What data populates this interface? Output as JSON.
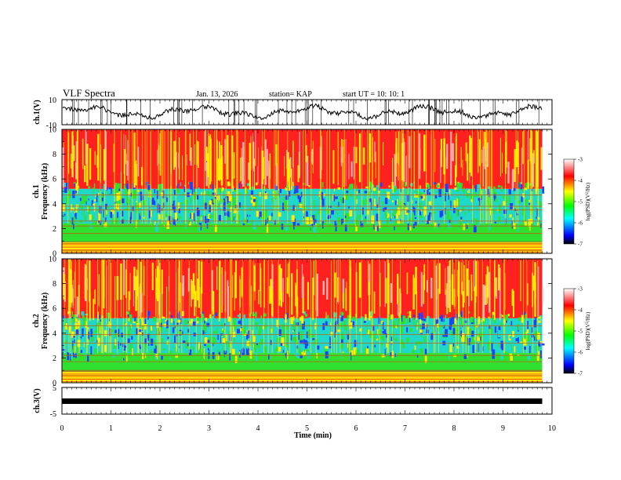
{
  "chart_data": [
    {
      "type": "line",
      "panel": "ch1-waveform",
      "ylabel": "ch.1(V)",
      "ylim": [
        -10,
        10
      ],
      "yticks": [
        "10",
        "-10"
      ],
      "header": {
        "title": "VLF Spectra",
        "date": "Jan. 13, 2026",
        "station": "station= KAP",
        "start": "start  UT =   10: 10: 1"
      }
    },
    {
      "type": "heatmap",
      "panel": "ch1-spectrogram",
      "ylabel": "ch.1\nFrequency (kHz)",
      "ylim": [
        0,
        10
      ],
      "yticks": [
        "0",
        "2",
        "4",
        "6",
        "8",
        "10"
      ],
      "colorbar": {
        "label": "log(PSD)(V^2/Hz)",
        "ticks": [
          "-3",
          "-4",
          "-5",
          "-6",
          "-7"
        ],
        "range": [
          -7,
          -3
        ]
      }
    },
    {
      "type": "heatmap",
      "panel": "ch2-spectrogram",
      "ylabel": "ch.2\nFrequency (kHz)",
      "ylim": [
        0,
        10
      ],
      "yticks": [
        "0",
        "2",
        "4",
        "6",
        "8",
        "10"
      ],
      "colorbar": {
        "label": "log(PSD)(V^2/Hz)",
        "ticks": [
          "-3",
          "-4",
          "-5",
          "-6",
          "-7"
        ],
        "range": [
          -7,
          -3
        ]
      }
    },
    {
      "type": "line",
      "panel": "ch3-waveform",
      "ylabel": "ch.3(V)",
      "ylim": [
        -5,
        5
      ],
      "yticks": [
        "5",
        "0",
        "-5"
      ],
      "xlabel": "Time (min)",
      "xlim": [
        0,
        10
      ],
      "xticks": [
        "0",
        "1",
        "2",
        "3",
        "4",
        "5",
        "6",
        "7",
        "8",
        "9",
        "10"
      ],
      "data_end_min": 9.8
    }
  ],
  "labels": {
    "title": "VLF Spectra",
    "date": "Jan. 13, 2026",
    "station": "station= KAP",
    "start": "start  UT =   10: 10: 1",
    "ch1_v": "ch.1(V)",
    "ch3_v": "ch.3(V)",
    "ch1": "ch.1",
    "ch2": "ch.2",
    "freq": "Frequency (kHz)",
    "time": "Time (min)",
    "cb_label": "log(PSD)(V",
    "cb_sup": "2",
    "cb_unit": "/Hz)"
  },
  "colors": {
    "red": "#ff2020",
    "yellow": "#ffee00",
    "green": "#30e030",
    "cyan": "#20d8c8",
    "blue": "#2040ff"
  }
}
